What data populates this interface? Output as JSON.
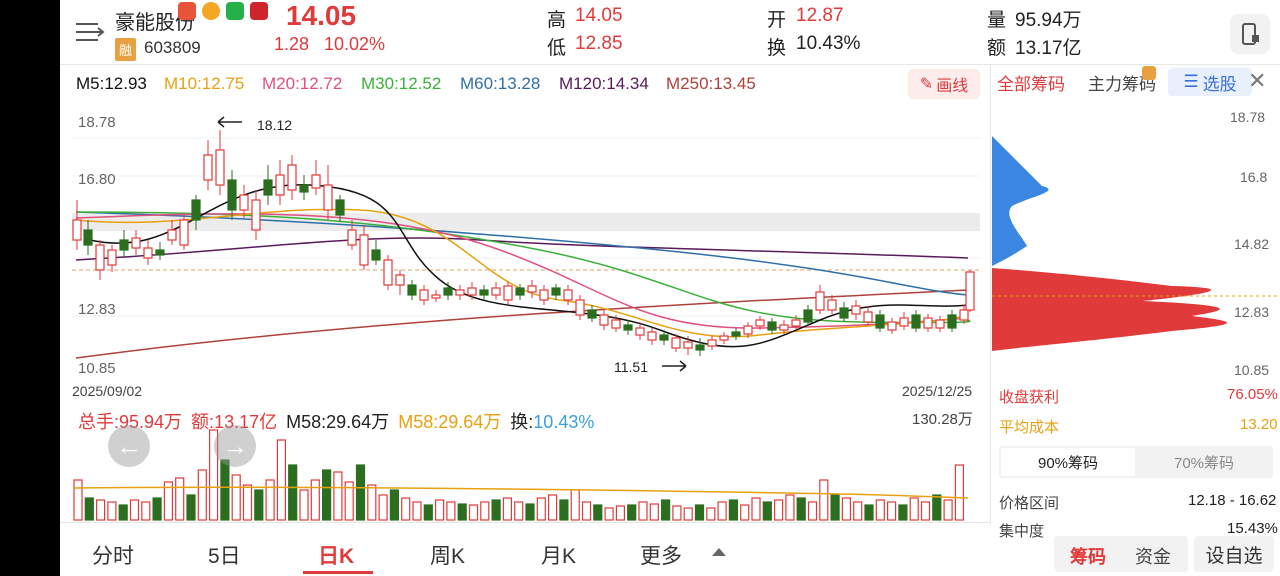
{
  "stock": {
    "name": "豪能股份",
    "code": "603809",
    "margin_badge": "融",
    "price": "14.05",
    "change": "1.28",
    "change_pct": "10.02%"
  },
  "quote": {
    "high_label": "高",
    "high": "14.05",
    "low_label": "低",
    "low": "12.85",
    "open_label": "开",
    "open": "12.87",
    "turnover_label": "换",
    "turnover": "10.43%",
    "volume_label": "量",
    "volume": "95.94万",
    "amount_label": "额",
    "amount": "13.17亿"
  },
  "ma": {
    "m5": "M5:12.93",
    "m10": "M10:12.75",
    "m20": "M20:12.72",
    "m30": "M30:12.52",
    "m60": "M60:13.28",
    "m120": "M120:14.34",
    "m250": "M250:13.45",
    "draw_button": "画线"
  },
  "price_axis": [
    "18.78",
    "16.80",
    "12.83",
    "10.85"
  ],
  "annotations": {
    "high": "18.12",
    "low": "11.51"
  },
  "dates": {
    "start": "2025/09/02",
    "end": "2025/12/25"
  },
  "volume_panel": {
    "total": "总手:95.94万",
    "amount": "额:13.17亿",
    "m58a": "M58:29.64万",
    "m58b": "M58:29.64万",
    "turnover_label": "换:",
    "turnover": "10.43%",
    "max": "130.28万"
  },
  "tabs": [
    "分时",
    "5日",
    "日K",
    "周K",
    "月K",
    "更多"
  ],
  "active_tab": "日K",
  "chip_panel": {
    "tabs": [
      "全部筹码",
      "主力筹码",
      "选股"
    ],
    "axis": [
      "18.78",
      "16.8",
      "14.82",
      "12.83",
      "10.85"
    ],
    "profit_label": "收盘获利",
    "profit": "76.05%",
    "avg_cost_label": "平均成本",
    "avg_cost": "13.20",
    "seg": [
      "90%筹码",
      "70%筹码"
    ],
    "range_label": "价格区间",
    "range": "12.18 - 16.62",
    "conc_label": "集中度",
    "conc": "15.43%"
  },
  "bottom_right": {
    "chips": "筹码",
    "funds": "资金",
    "watchlist": "设自选"
  },
  "colors": {
    "up": "#e03a3a",
    "down": "#2b6e1f",
    "blue": "#3a86e0"
  }
}
